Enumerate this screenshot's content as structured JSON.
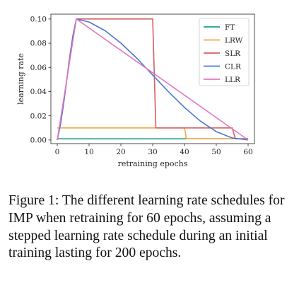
{
  "chart_data": {
    "type": "line",
    "xlabel": "retraining epochs",
    "ylabel": "learning rate",
    "xlim": [
      -2,
      62
    ],
    "ylim": [
      -0.003,
      0.104
    ],
    "xticks": [
      0,
      10,
      20,
      30,
      40,
      50,
      60
    ],
    "yticks": [
      0.0,
      0.02,
      0.04,
      0.06,
      0.08,
      0.1
    ],
    "xtick_labels": [
      "0",
      "10",
      "20",
      "30",
      "40",
      "50",
      "60"
    ],
    "ytick_labels": [
      "0.00",
      "0.02",
      "0.04",
      "0.06",
      "0.08",
      "0.10"
    ],
    "grid": false,
    "legend_position": "top-right",
    "series": [
      {
        "name": "FT",
        "color": "#1f9e89",
        "x": [
          0,
          60
        ],
        "y": [
          0.001,
          0.001
        ]
      },
      {
        "name": "LRW",
        "color": "#f5a742",
        "x": [
          0,
          40,
          40.6,
          60
        ],
        "y": [
          0.01,
          0.01,
          0.001,
          0.001
        ]
      },
      {
        "name": "SLR",
        "color": "#d65f5f",
        "x": [
          0,
          1,
          2,
          3,
          4,
          5,
          6,
          30,
          31,
          55,
          56,
          60
        ],
        "y": [
          0.0,
          0.0128,
          0.0302,
          0.05,
          0.0698,
          0.0872,
          0.1,
          0.1,
          0.01,
          0.01,
          0.001,
          0.001
        ]
      },
      {
        "name": "CLR",
        "color": "#4878cf",
        "x": [
          0,
          1,
          2,
          3,
          4,
          5,
          6,
          10,
          15,
          20,
          25,
          30,
          35,
          40,
          45,
          50,
          55,
          60
        ],
        "y": [
          0.0,
          0.0128,
          0.0302,
          0.05,
          0.0698,
          0.0872,
          0.1,
          0.0975,
          0.0904,
          0.0801,
          0.0676,
          0.0537,
          0.0398,
          0.0269,
          0.0156,
          0.0069,
          0.0017,
          0.0
        ]
      },
      {
        "name": "LLR",
        "color": "#e377c2",
        "x": [
          0,
          6,
          60
        ],
        "y": [
          0.0,
          0.1,
          0.0
        ]
      }
    ]
  },
  "caption": "Figure 1:  The different learning rate schedules for IMP when retraining for 60 epochs, assuming a stepped learning rate schedule during an initial training lasting for 200 epochs."
}
